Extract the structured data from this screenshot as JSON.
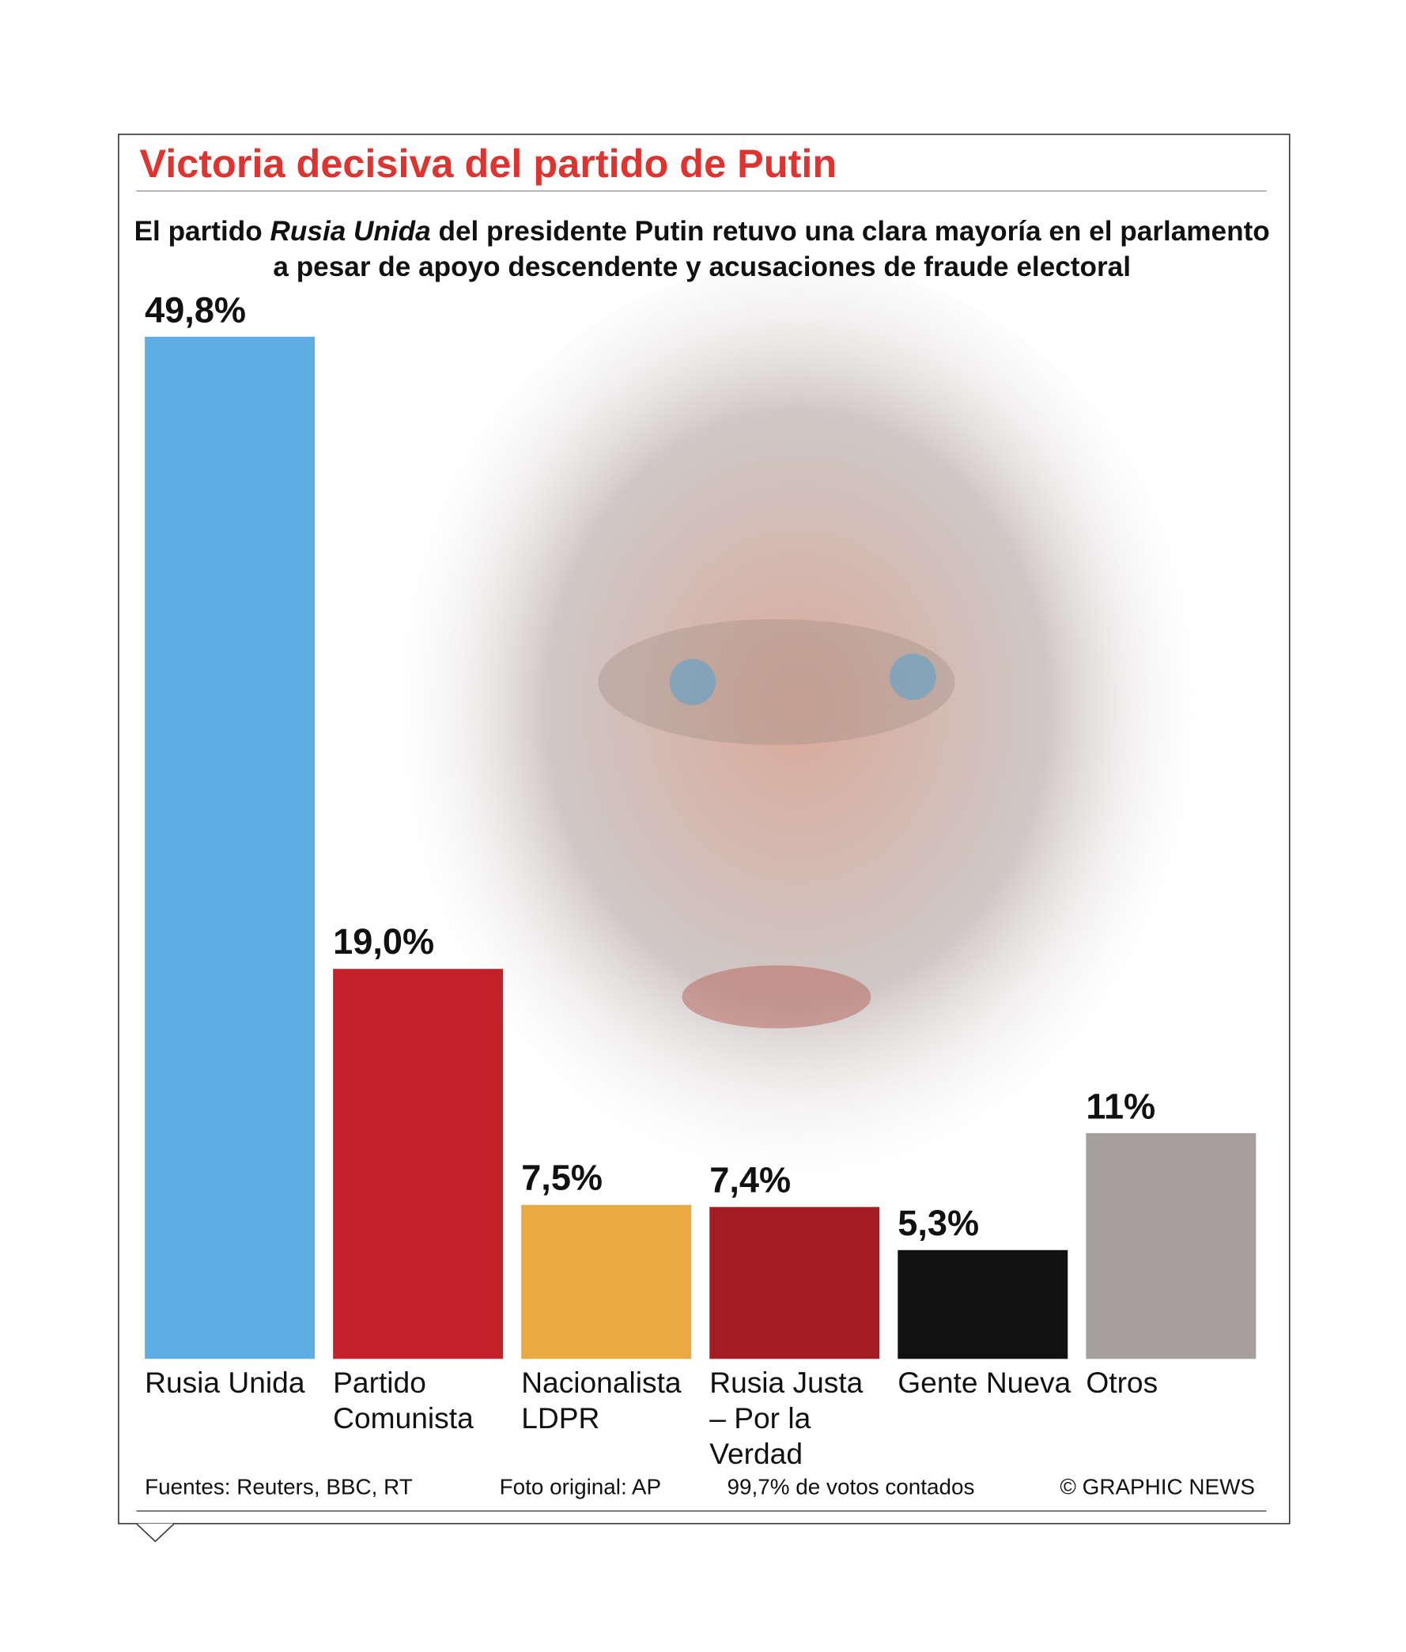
{
  "chart_data": {
    "type": "bar",
    "title": "Victoria decisiva del partido de Putin",
    "subtitle_parts": [
      "El partido ",
      "Rusia Unida",
      " del presidente Putin retuvo una clara mayoría en el parlamento a pesar de apoyo descendente y acusaciones de fraude electoral"
    ],
    "categories": [
      "Rusia Unida",
      "Partido Comunista",
      "Nacionalista LDPR",
      "Rusia Justa – Por la Verdad",
      "Gente Nueva",
      "Otros"
    ],
    "values": [
      49.8,
      19.0,
      7.5,
      7.4,
      5.3,
      11
    ],
    "value_labels": [
      "49,8%",
      "19,0%",
      "7,5%",
      "7,4%",
      "5,3%",
      "11%"
    ],
    "colors": [
      "#5eaee3",
      "#c4202a",
      "#e8a940",
      "#a51d24",
      "#111111",
      "#a59f9d"
    ],
    "ylim": [
      0,
      50
    ],
    "footer": [
      "Fuentes: Reuters, BBC, RT",
      "Foto original: AP",
      "99,7% de votos contados",
      "© GRAPHIC NEWS"
    ]
  }
}
